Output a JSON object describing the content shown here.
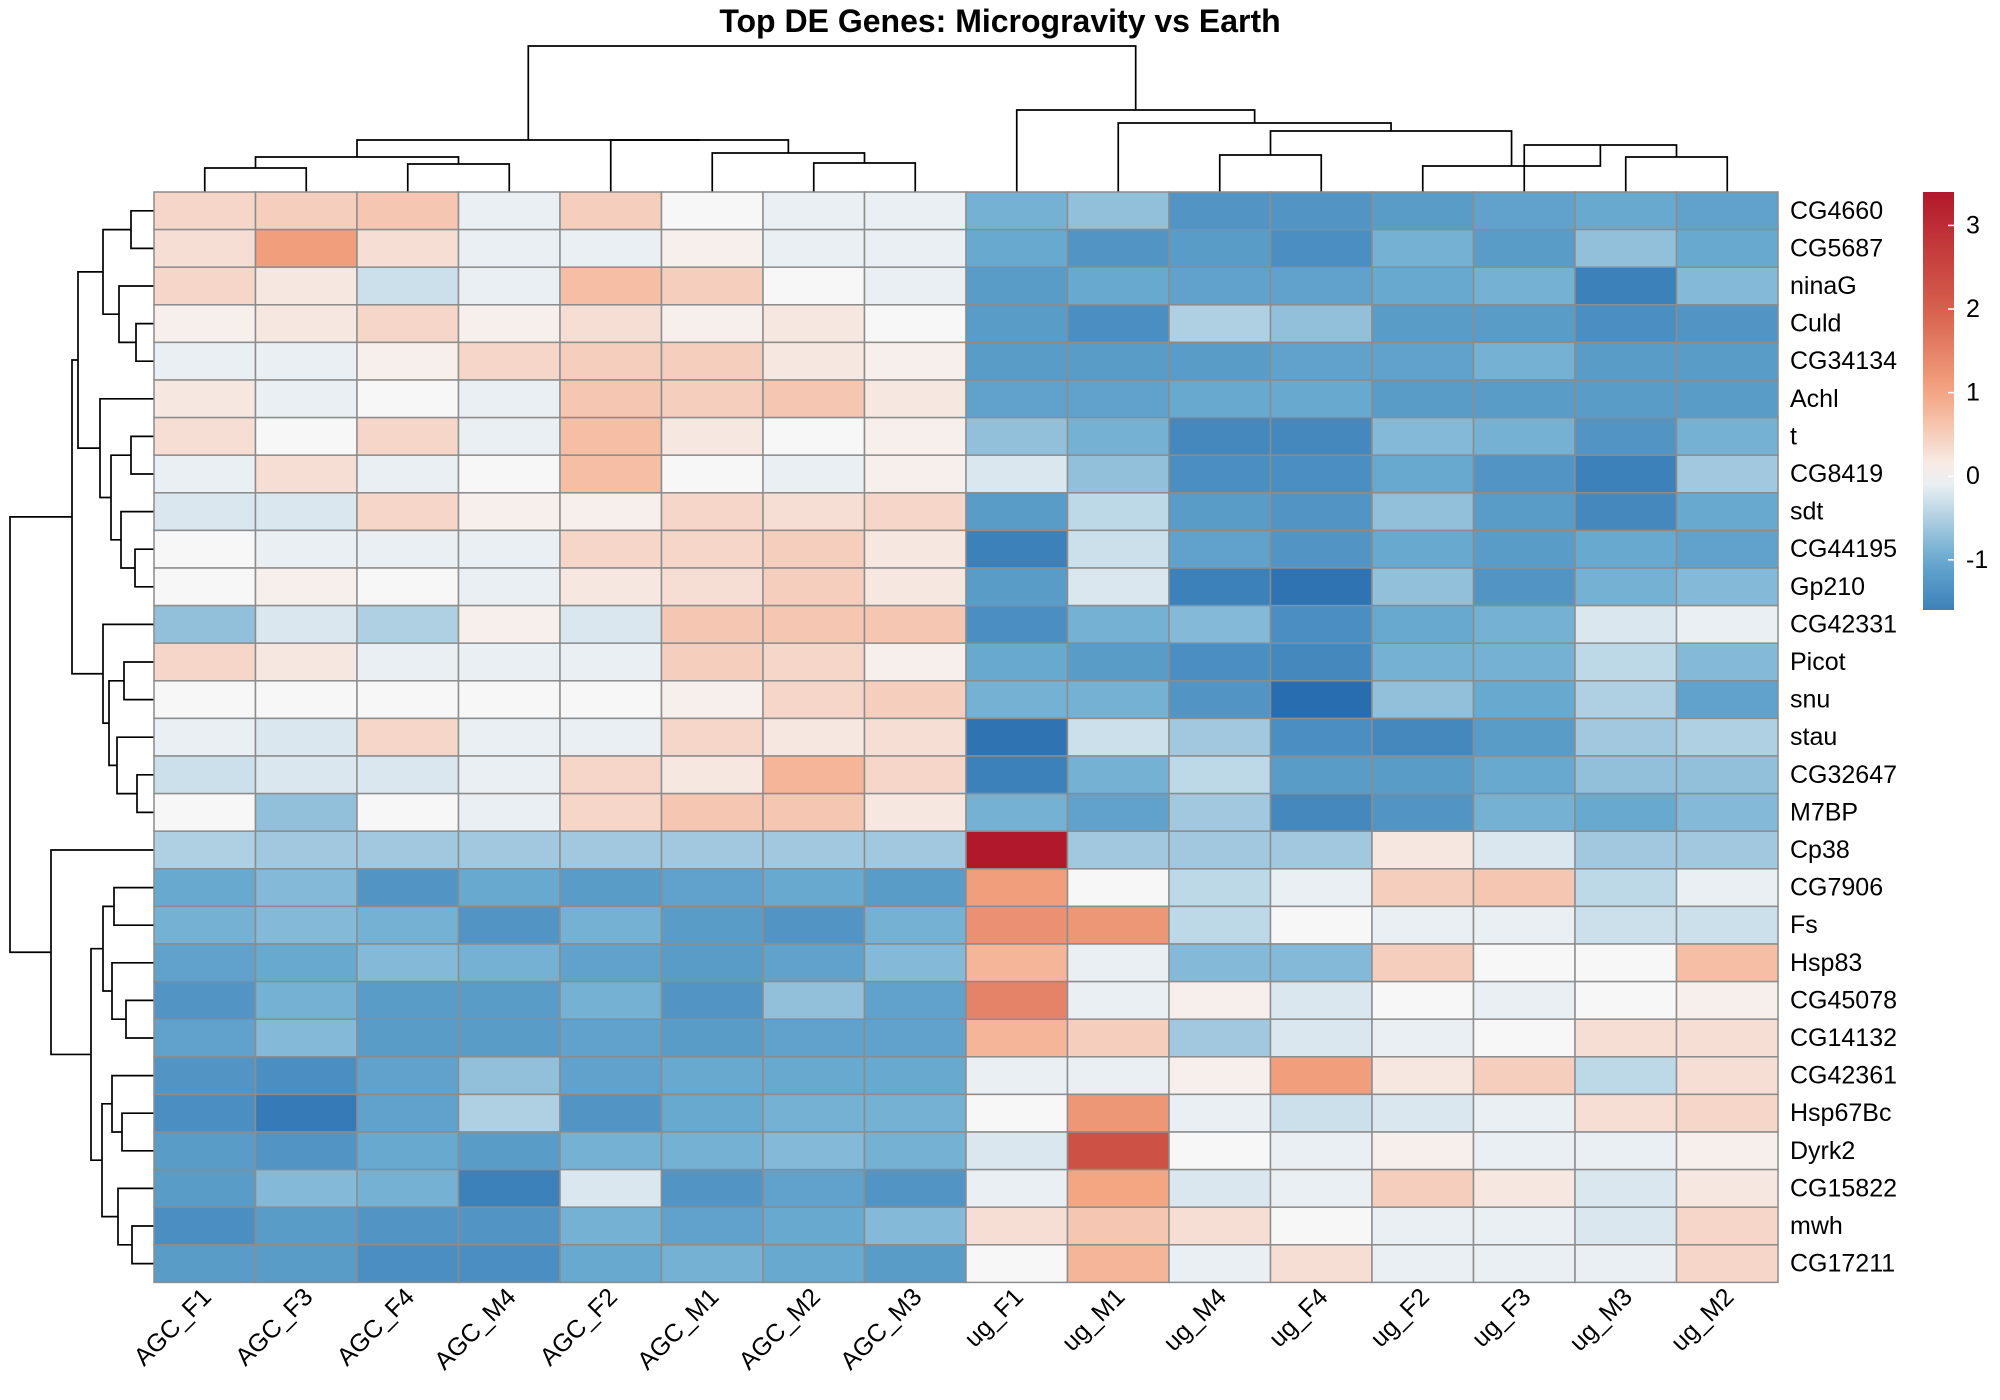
{
  "chart_data": {
    "type": "heatmap",
    "title": "Top DE Genes: Microgravity vs Earth",
    "columns": [
      "AGC_F1",
      "AGC_F3",
      "AGC_F4",
      "AGC_M4",
      "AGC_F2",
      "AGC_M1",
      "AGC_M2",
      "AGC_M3",
      "ug_F1",
      "ug_M1",
      "ug_M4",
      "ug_F4",
      "ug_F2",
      "ug_F3",
      "ug_M3",
      "ug_M2"
    ],
    "rows": [
      "CG4660",
      "CG5687",
      "ninaG",
      "Culd",
      "CG34134",
      "Achl",
      "t",
      "CG8419",
      "sdt",
      "CG44195",
      "Gp210",
      "CG42331",
      "Picot",
      "snu",
      "stau",
      "CG32647",
      "M7BP",
      "Cp38",
      "CG7906",
      "Fs",
      "Hsp83",
      "CG45078",
      "CG14132",
      "CG42361",
      "Hsp67Bc",
      "Dyrk2",
      "CG15822",
      "mwh",
      "CG17211"
    ],
    "values": [
      [
        0.4,
        0.5,
        0.6,
        -0.1,
        0.5,
        0.0,
        -0.1,
        -0.1,
        -0.9,
        -0.7,
        -1.3,
        -1.3,
        -1.2,
        -1.1,
        -1.0,
        -1.1
      ],
      [
        0.3,
        1.1,
        0.3,
        -0.1,
        -0.1,
        0.1,
        -0.1,
        -0.1,
        -1.0,
        -1.3,
        -1.2,
        -1.4,
        -0.9,
        -1.2,
        -0.7,
        -1.0
      ],
      [
        0.4,
        0.2,
        -0.3,
        -0.1,
        0.7,
        0.5,
        0.0,
        -0.1,
        -1.2,
        -1.0,
        -1.1,
        -1.1,
        -1.0,
        -0.9,
        -1.6,
        -0.8
      ],
      [
        0.1,
        0.2,
        0.4,
        0.1,
        0.3,
        0.1,
        0.2,
        0.0,
        -1.2,
        -1.4,
        -0.5,
        -0.7,
        -1.2,
        -1.2,
        -1.4,
        -1.3
      ],
      [
        -0.1,
        -0.1,
        0.1,
        0.4,
        0.5,
        0.5,
        0.2,
        0.1,
        -1.2,
        -1.2,
        -1.2,
        -1.1,
        -1.1,
        -0.9,
        -1.2,
        -1.2
      ],
      [
        0.2,
        -0.1,
        0.0,
        -0.1,
        0.6,
        0.5,
        0.6,
        0.2,
        -1.1,
        -1.1,
        -1.0,
        -1.0,
        -1.2,
        -1.2,
        -1.2,
        -1.2
      ],
      [
        0.3,
        0.0,
        0.4,
        -0.1,
        0.7,
        0.2,
        0.0,
        0.1,
        -0.7,
        -0.9,
        -1.5,
        -1.5,
        -0.8,
        -0.9,
        -1.3,
        -0.9
      ],
      [
        -0.1,
        0.3,
        -0.1,
        0.0,
        0.7,
        0.0,
        -0.1,
        0.1,
        -0.2,
        -0.7,
        -1.4,
        -1.4,
        -1.0,
        -1.3,
        -1.6,
        -0.6
      ],
      [
        -0.2,
        -0.2,
        0.4,
        0.1,
        0.1,
        0.4,
        0.3,
        0.4,
        -1.2,
        -0.4,
        -1.2,
        -1.3,
        -0.7,
        -1.2,
        -1.5,
        -1.0
      ],
      [
        0.0,
        -0.1,
        -0.1,
        -0.1,
        0.4,
        0.4,
        0.5,
        0.2,
        -1.6,
        -0.3,
        -1.1,
        -1.3,
        -1.0,
        -1.2,
        -1.0,
        -1.1
      ],
      [
        0.0,
        0.1,
        0.0,
        -0.1,
        0.2,
        0.3,
        0.5,
        0.2,
        -1.2,
        -0.2,
        -1.6,
        -1.8,
        -0.7,
        -1.3,
        -0.9,
        -0.8
      ],
      [
        -0.7,
        -0.2,
        -0.5,
        0.1,
        -0.2,
        0.6,
        0.6,
        0.6,
        -1.4,
        -0.9,
        -0.8,
        -1.4,
        -1.0,
        -0.9,
        -0.2,
        -0.1
      ],
      [
        0.4,
        0.2,
        -0.1,
        -0.1,
        -0.1,
        0.5,
        0.4,
        0.1,
        -1.0,
        -1.2,
        -1.4,
        -1.5,
        -0.9,
        -0.9,
        -0.4,
        -0.8
      ],
      [
        0.0,
        0.0,
        0.0,
        0.0,
        0.0,
        0.1,
        0.4,
        0.5,
        -0.9,
        -0.9,
        -1.3,
        -1.9,
        -0.7,
        -1.0,
        -0.5,
        -1.1
      ],
      [
        -0.1,
        -0.2,
        0.4,
        -0.1,
        -0.1,
        0.4,
        0.2,
        0.3,
        -1.8,
        -0.3,
        -0.6,
        -1.4,
        -1.5,
        -1.2,
        -0.6,
        -0.5
      ],
      [
        -0.3,
        -0.2,
        -0.2,
        -0.1,
        0.4,
        0.2,
        0.8,
        0.4,
        -1.6,
        -0.9,
        -0.4,
        -1.2,
        -1.2,
        -1.0,
        -0.7,
        -0.7
      ],
      [
        0.0,
        -0.7,
        0.0,
        -0.1,
        0.4,
        0.6,
        0.6,
        0.2,
        -0.9,
        -1.1,
        -0.6,
        -1.5,
        -1.3,
        -0.9,
        -1.0,
        -0.8
      ],
      [
        -0.5,
        -0.6,
        -0.6,
        -0.6,
        -0.6,
        -0.6,
        -0.6,
        -0.6,
        3.4,
        -0.6,
        -0.6,
        -0.6,
        0.2,
        -0.2,
        -0.6,
        -0.6
      ],
      [
        -1.0,
        -0.8,
        -1.3,
        -1.0,
        -1.2,
        -1.1,
        -1.0,
        -1.2,
        1.1,
        0.0,
        -0.4,
        -0.1,
        0.5,
        0.6,
        -0.4,
        -0.1
      ],
      [
        -0.9,
        -0.8,
        -0.9,
        -1.3,
        -0.9,
        -1.2,
        -1.3,
        -0.9,
        1.3,
        1.2,
        -0.4,
        0.0,
        -0.1,
        -0.1,
        -0.3,
        -0.3
      ],
      [
        -1.1,
        -1.0,
        -0.8,
        -0.9,
        -1.1,
        -1.2,
        -1.1,
        -0.8,
        0.8,
        -0.1,
        -0.8,
        -0.8,
        0.5,
        0.0,
        0.0,
        0.7
      ],
      [
        -1.3,
        -0.9,
        -1.2,
        -1.2,
        -0.9,
        -1.3,
        -0.7,
        -1.1,
        1.5,
        -0.1,
        0.1,
        -0.2,
        0.0,
        -0.1,
        0.0,
        0.1
      ],
      [
        -1.1,
        -0.8,
        -1.2,
        -1.2,
        -1.1,
        -1.2,
        -1.1,
        -1.1,
        0.8,
        0.5,
        -0.6,
        -0.2,
        -0.1,
        0.0,
        0.3,
        0.3
      ],
      [
        -1.3,
        -1.4,
        -1.1,
        -0.7,
        -1.1,
        -1.0,
        -1.0,
        -1.0,
        -0.1,
        -0.1,
        0.1,
        1.1,
        0.2,
        0.5,
        -0.4,
        0.3
      ],
      [
        -1.4,
        -1.7,
        -1.1,
        -0.5,
        -1.3,
        -1.0,
        -0.9,
        -0.9,
        0.0,
        1.2,
        -0.1,
        -0.3,
        -0.2,
        -0.1,
        0.3,
        0.4
      ],
      [
        -1.2,
        -1.3,
        -1.0,
        -1.2,
        -0.9,
        -0.9,
        -0.8,
        -0.9,
        -0.2,
        2.3,
        0.0,
        -0.1,
        0.1,
        -0.1,
        -0.1,
        0.1
      ],
      [
        -1.2,
        -0.8,
        -0.9,
        -1.6,
        -0.2,
        -1.3,
        -1.1,
        -1.3,
        -0.1,
        1.0,
        -0.2,
        -0.1,
        0.5,
        0.2,
        -0.2,
        0.2
      ],
      [
        -1.4,
        -1.2,
        -1.3,
        -1.3,
        -0.9,
        -1.1,
        -1.0,
        -0.8,
        0.3,
        0.6,
        0.3,
        0.0,
        -0.1,
        -0.1,
        -0.2,
        0.4
      ],
      [
        -1.2,
        -1.2,
        -1.4,
        -1.4,
        -1.0,
        -0.9,
        -1.0,
        -1.2,
        0.0,
        0.8,
        -0.1,
        0.3,
        -0.1,
        -0.1,
        -0.1,
        0.4
      ]
    ],
    "color_scale": {
      "stops": [
        {
          "value": -2.0,
          "color": "#2166ac"
        },
        {
          "value": -1.0,
          "color": "#67a9cf"
        },
        {
          "value": 0.0,
          "color": "#f7f7f7"
        },
        {
          "value": 1.0,
          "color": "#f4a582"
        },
        {
          "value": 2.0,
          "color": "#d6604d"
        },
        {
          "value": 3.4,
          "color": "#b2182b"
        }
      ],
      "ticks": [
        3,
        2,
        1,
        0,
        -1
      ]
    },
    "grid": true,
    "legend": "right",
    "dendrograms": "row-left, column-top"
  }
}
